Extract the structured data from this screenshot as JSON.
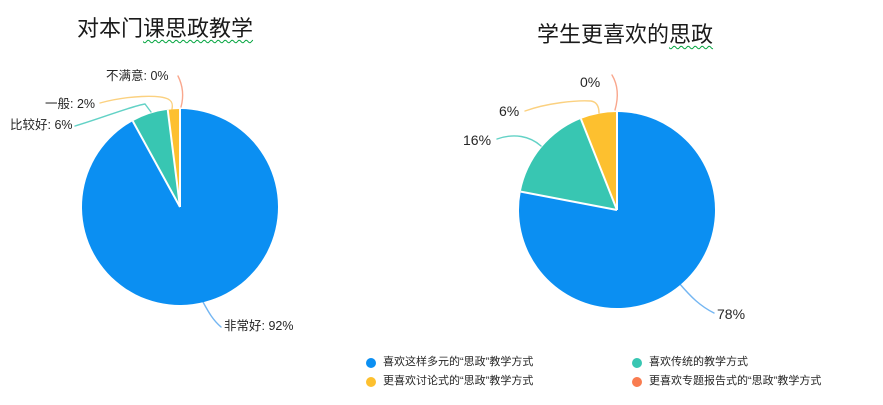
{
  "page": {
    "background": "#ffffff",
    "spellcheck_underline_color": "#00a33c"
  },
  "palette": {
    "blue": "#0b8ff2",
    "teal": "#38c6b2",
    "yellow": "#fdc02f",
    "orange": "#f97c50"
  },
  "charts": [
    {
      "title_plain": "对本门",
      "title_marked": "课思政教学"
    },
    {
      "title_plain": "学生更喜欢的",
      "title_marked": "思政"
    }
  ],
  "chart_data": [
    {
      "type": "pie",
      "title": "对本门课思政教学",
      "start_angle_deg": 0,
      "direction": "clockwise",
      "legend": "none",
      "series": [
        {
          "label": "非常好",
          "value": 92,
          "color": "#0b8ff2"
        },
        {
          "label": "比较好",
          "value": 6,
          "color": "#38c6b2"
        },
        {
          "label": "一般",
          "value": 2,
          "color": "#fdc02f"
        },
        {
          "label": "不满意",
          "value": 0,
          "color": "#f97c50"
        }
      ],
      "callouts": [
        {
          "text": "非常好: 92%"
        },
        {
          "text": "比较好: 6%"
        },
        {
          "text": "一般: 2%"
        },
        {
          "text": "不满意: 0%"
        }
      ]
    },
    {
      "type": "pie",
      "title": "学生更喜欢的思政",
      "start_angle_deg": 0,
      "direction": "clockwise",
      "legend_position": "bottom",
      "series": [
        {
          "label": "喜欢这样多元的“思政”教学方式",
          "value": 78,
          "color": "#0b8ff2"
        },
        {
          "label": "喜欢传统的教学方式",
          "value": 16,
          "color": "#38c6b2"
        },
        {
          "label": "更喜欢讨论式的“思政”教学方式",
          "value": 6,
          "color": "#fdc02f"
        },
        {
          "label": "更喜欢专题报告式的“思政”教学方式",
          "value": 0,
          "color": "#f97c50"
        }
      ],
      "callouts": [
        {
          "text": "78%"
        },
        {
          "text": "16%"
        },
        {
          "text": "6%"
        },
        {
          "text": "0%"
        }
      ]
    }
  ],
  "legend": {
    "items": [
      {
        "label": "喜欢这样多元的“思政”教学方式",
        "color": "#0b8ff2"
      },
      {
        "label": "喜欢传统的教学方式",
        "color": "#38c6b2"
      },
      {
        "label": "更喜欢讨论式的“思政”教学方式",
        "color": "#fdc02f"
      },
      {
        "label": "更喜欢专题报告式的“思政”教学方式",
        "color": "#f97c50"
      }
    ]
  }
}
